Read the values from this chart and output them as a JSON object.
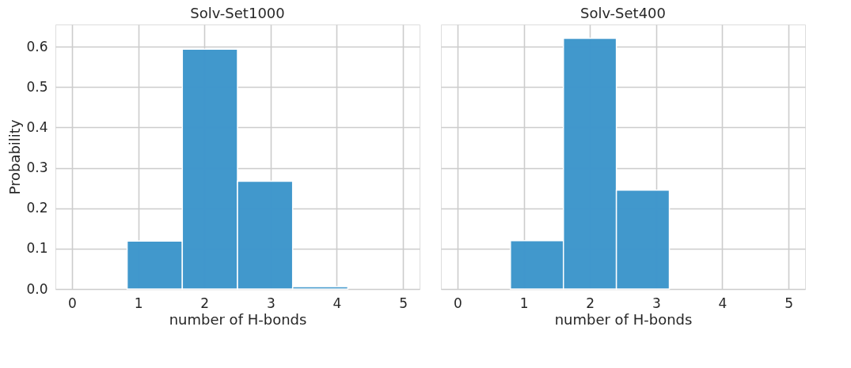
{
  "chart_data": [
    {
      "type": "histogram",
      "title": "Solv-Set1000",
      "xlabel": "number of H-bonds",
      "ylabel": "Probability",
      "bins": [
        0,
        0.8333,
        1.6667,
        2.5,
        3.3333,
        4.1667,
        5
      ],
      "values": [
        0,
        0.119,
        0.594,
        0.267,
        0.006,
        0
      ],
      "color": "#3e96cc",
      "xlim": [
        -0.25,
        5.25
      ],
      "xticks": [
        0,
        1,
        2,
        3,
        4,
        5
      ],
      "ylim": [
        0,
        0.655
      ],
      "yticks": [
        {
          "value": 0,
          "label": "0.0"
        },
        0.1,
        0.2,
        0.3,
        0.4,
        0.5,
        0.6
      ],
      "grid": true
    },
    {
      "type": "histogram",
      "title": "Solv-Set400",
      "xlabel": "number of H-bonds",
      "bins": [
        0,
        0.8,
        1.6,
        2.4,
        3.2,
        4.0
      ],
      "values": [
        0,
        0.12,
        0.621,
        0.245,
        0
      ],
      "color": "#3e96cc",
      "xlim": [
        -0.25,
        5.25
      ],
      "xticks": [
        0,
        1,
        2,
        3,
        4,
        5
      ],
      "ylim": [
        0,
        0.655
      ],
      "yticks": [
        0,
        0.1,
        0.2,
        0.3,
        0.4,
        0.5,
        0.6
      ],
      "grid": true,
      "tick_labels": "x"
    }
  ]
}
